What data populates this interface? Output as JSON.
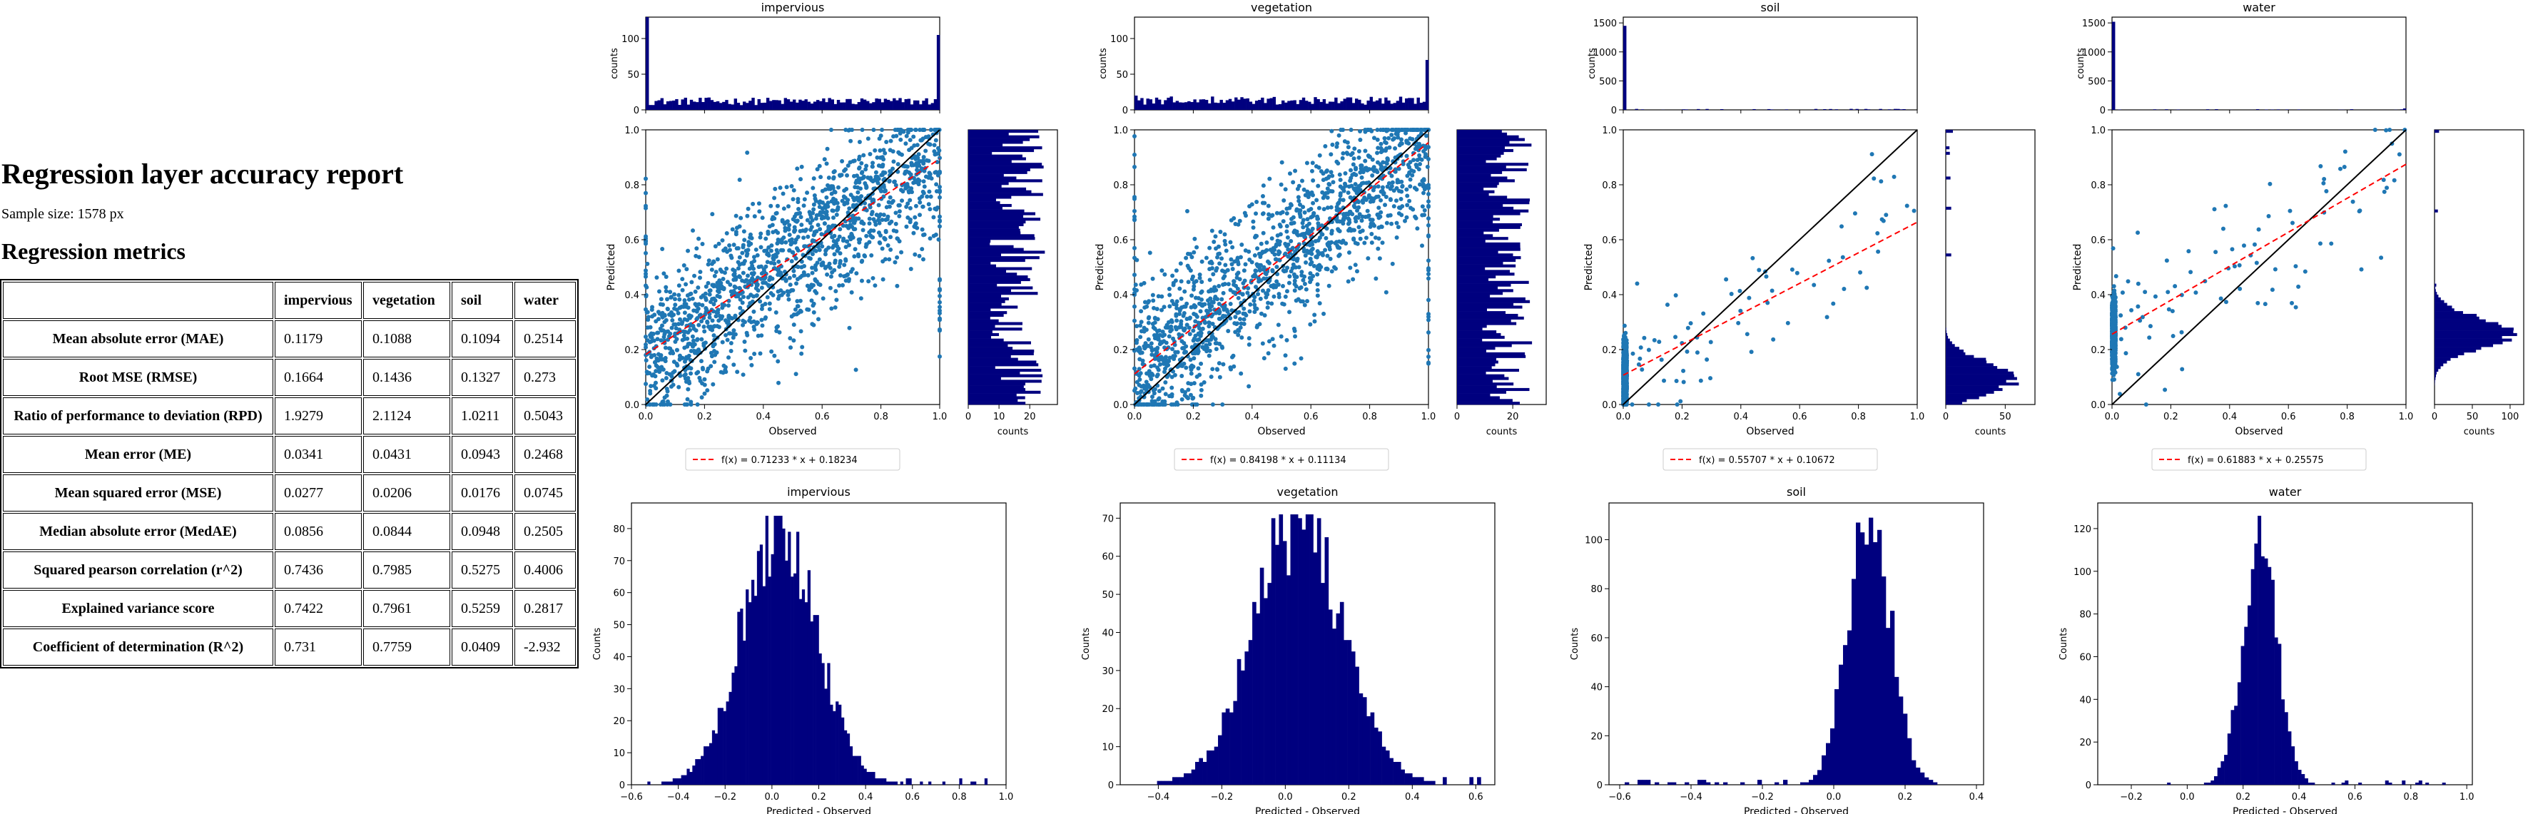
{
  "report": {
    "title": "Regression layer accuracy report",
    "sample_size": "Sample size: 1578 px",
    "metrics_heading": "Regression metrics",
    "columns": [
      "impervious",
      "vegetation",
      "soil",
      "water"
    ],
    "rows": [
      {
        "name": "Mean absolute error (MAE)",
        "values": [
          "0.1179",
          "0.1088",
          "0.1094",
          "0.2514"
        ]
      },
      {
        "name": "Root MSE (RMSE)",
        "values": [
          "0.1664",
          "0.1436",
          "0.1327",
          "0.273"
        ]
      },
      {
        "name": "Ratio of performance to deviation (RPD)",
        "values": [
          "1.9279",
          "2.1124",
          "1.0211",
          "0.5043"
        ]
      },
      {
        "name": "Mean error (ME)",
        "values": [
          "0.0341",
          "0.0431",
          "0.0943",
          "0.2468"
        ]
      },
      {
        "name": "Mean squared error (MSE)",
        "values": [
          "0.0277",
          "0.0206",
          "0.0176",
          "0.0745"
        ]
      },
      {
        "name": "Median absolute error (MedAE)",
        "values": [
          "0.0856",
          "0.0844",
          "0.0948",
          "0.2505"
        ]
      },
      {
        "name": "Squared pearson correlation (r^2)",
        "values": [
          "0.7436",
          "0.7985",
          "0.5275",
          "0.4006"
        ]
      },
      {
        "name": "Explained variance score",
        "values": [
          "0.7422",
          "0.7961",
          "0.5259",
          "0.2817"
        ]
      },
      {
        "name": "Coefficient of determination (R^2)",
        "values": [
          "0.731",
          "0.7759",
          "0.0409",
          "-2.932"
        ]
      }
    ]
  },
  "colors": {
    "hist": "#00007f",
    "points": "#1f77b4",
    "fit": "#ff0000",
    "identity": "#000000"
  },
  "chart_data": [
    {
      "type": "scatter",
      "panel": "impervious",
      "title": "impervious",
      "xlabel": "Observed",
      "ylabel": "Predicted",
      "xlim": [
        0,
        1
      ],
      "ylim": [
        0,
        1
      ],
      "xticks": [
        "0.0",
        "0.2",
        "0.4",
        "0.6",
        "0.8",
        "1.0"
      ],
      "yticks": [
        "0.0",
        "0.2",
        "0.4",
        "0.6",
        "0.8",
        "1.0"
      ],
      "fit": {
        "slope": 0.71233,
        "intercept": 0.18234,
        "label": "f(x) = 0.71233 * x + 0.18234"
      },
      "identity_line": true,
      "pattern": "spread",
      "sample_size": 1578,
      "top_hist": {
        "ylabel": "counts",
        "ylim": [
          0,
          130
        ],
        "yticks": [
          "0",
          "50",
          "100"
        ],
        "edge_left": 130,
        "edge_right": 105,
        "bulk": 12
      },
      "right_hist": {
        "xlabel": "counts",
        "xlim": [
          0,
          29
        ],
        "xticks": [
          "0",
          "10",
          "20"
        ],
        "bulk": 16,
        "spread": 12
      },
      "residuals": {
        "type": "histogram",
        "xlabel": "Predicted - Observed",
        "ylabel": "Counts",
        "xlim": [
          -0.6,
          1.0
        ],
        "xticks": [
          "−0.6",
          "−0.4",
          "−0.2",
          "0.0",
          "0.2",
          "0.4",
          "0.6",
          "0.8",
          "1.0"
        ],
        "xtick_values": [
          -0.6,
          -0.4,
          -0.2,
          0,
          0.2,
          0.4,
          0.6,
          0.8,
          1.0
        ],
        "ylim": [
          0,
          88
        ],
        "yticks": [
          "0",
          "10",
          "20",
          "30",
          "40",
          "50",
          "60",
          "70",
          "80"
        ],
        "ytick_values": [
          0,
          10,
          20,
          30,
          40,
          50,
          60,
          70,
          80
        ],
        "center": 0.03,
        "sd": 0.16,
        "peak": 84,
        "tail": [
          0.45,
          0.93
        ]
      }
    },
    {
      "type": "scatter",
      "panel": "vegetation",
      "title": "vegetation",
      "xlabel": "Observed",
      "ylabel": "Predicted",
      "xlim": [
        0,
        1
      ],
      "ylim": [
        0,
        1
      ],
      "xticks": [
        "0.0",
        "0.2",
        "0.4",
        "0.6",
        "0.8",
        "1.0"
      ],
      "yticks": [
        "0.0",
        "0.2",
        "0.4",
        "0.6",
        "0.8",
        "1.0"
      ],
      "fit": {
        "slope": 0.84198,
        "intercept": 0.11134,
        "label": "f(x) = 0.84198 * x + 0.11134"
      },
      "identity_line": true,
      "pattern": "spread",
      "sample_size": 1578,
      "top_hist": {
        "ylabel": "counts",
        "ylim": [
          0,
          130
        ],
        "yticks": [
          "0",
          "50",
          "100"
        ],
        "edge_left": 20,
        "edge_right": 70,
        "bulk": 13
      },
      "right_hist": {
        "xlabel": "counts",
        "xlim": [
          0,
          32
        ],
        "xticks": [
          "0",
          "20"
        ],
        "bulk": 18,
        "spread": 12
      },
      "residuals": {
        "type": "histogram",
        "xlabel": "Predicted - Observed",
        "ylabel": "Counts",
        "xlim": [
          -0.52,
          0.66
        ],
        "xticks": [
          "−0.4",
          "−0.2",
          "0.0",
          "0.2",
          "0.4",
          "0.6"
        ],
        "xtick_values": [
          -0.4,
          -0.2,
          0,
          0.2,
          0.4,
          0.6
        ],
        "ylim": [
          0,
          74
        ],
        "yticks": [
          "0",
          "10",
          "20",
          "30",
          "40",
          "50",
          "60",
          "70"
        ],
        "ytick_values": [
          0,
          10,
          20,
          30,
          40,
          50,
          60,
          70
        ],
        "center": 0.04,
        "sd": 0.14,
        "peak": 71,
        "tail": [
          0.5,
          0.64
        ]
      }
    },
    {
      "type": "scatter",
      "panel": "soil",
      "title": "soil",
      "xlabel": "Observed",
      "ylabel": "Predicted",
      "xlim": [
        0,
        1
      ],
      "ylim": [
        0,
        1
      ],
      "xticks": [
        "0.0",
        "0.2",
        "0.4",
        "0.6",
        "0.8",
        "1.0"
      ],
      "yticks": [
        "0.0",
        "0.2",
        "0.4",
        "0.6",
        "0.8",
        "1.0"
      ],
      "fit": {
        "slope": 0.55707,
        "intercept": 0.10672,
        "label": "f(x) = 0.55707 * x + 0.10672"
      },
      "identity_line": true,
      "pattern": "zero-cluster",
      "sample_size": 1578,
      "top_hist": {
        "ylabel": "counts",
        "ylim": [
          0,
          1600
        ],
        "yticks": [
          "0",
          "500",
          "1000",
          "1500"
        ],
        "edge_left": 1450,
        "edge_right": 0,
        "bulk": 3
      },
      "right_hist": {
        "xlabel": "counts",
        "xlim": [
          0,
          75
        ],
        "xticks": [
          "0",
          "50"
        ],
        "center": 0.1,
        "sd": 0.055,
        "peak": 62
      },
      "residuals": {
        "type": "histogram",
        "xlabel": "Predicted - Observed",
        "ylabel": "Counts",
        "xlim": [
          -0.63,
          0.42
        ],
        "xticks": [
          "−0.6",
          "−0.4",
          "−0.2",
          "0.0",
          "0.2",
          "0.4"
        ],
        "xtick_values": [
          -0.6,
          -0.4,
          -0.2,
          0,
          0.2,
          0.4
        ],
        "ylim": [
          0,
          115
        ],
        "yticks": [
          "0",
          "20",
          "40",
          "60",
          "80",
          "100"
        ],
        "ytick_values": [
          0,
          20,
          40,
          60,
          80,
          100
        ],
        "center": 0.1,
        "sd": 0.06,
        "peak": 110,
        "tail": [
          -0.55,
          -0.05
        ]
      }
    },
    {
      "type": "scatter",
      "panel": "water",
      "title": "water",
      "xlabel": "Observed",
      "ylabel": "Predicted",
      "xlim": [
        0,
        1
      ],
      "ylim": [
        0,
        1
      ],
      "xticks": [
        "0.0",
        "0.2",
        "0.4",
        "0.6",
        "0.8",
        "1.0"
      ],
      "yticks": [
        "0.0",
        "0.2",
        "0.4",
        "0.6",
        "0.8",
        "1.0"
      ],
      "fit": {
        "slope": 0.61883,
        "intercept": 0.25575,
        "label": "f(x) = 0.61883 * x + 0.25575"
      },
      "identity_line": true,
      "pattern": "zero-cluster",
      "sample_size": 1578,
      "top_hist": {
        "ylabel": "counts",
        "ylim": [
          0,
          1600
        ],
        "yticks": [
          "0",
          "500",
          "1000",
          "1500"
        ],
        "edge_left": 1520,
        "edge_right": 25,
        "bulk": 2
      },
      "right_hist": {
        "xlabel": "counts",
        "xlim": [
          0,
          118
        ],
        "xticks": [
          "0",
          "50",
          "100"
        ],
        "center": 0.26,
        "sd": 0.055,
        "peak": 100
      },
      "residuals": {
        "type": "histogram",
        "xlabel": "Predicted - Observed",
        "ylabel": "Counts",
        "xlim": [
          -0.32,
          1.02
        ],
        "xticks": [
          "−0.2",
          "0.0",
          "0.2",
          "0.4",
          "0.6",
          "0.8",
          "1.0"
        ],
        "xtick_values": [
          -0.2,
          0,
          0.2,
          0.4,
          0.6,
          0.8,
          1.0
        ],
        "ylim": [
          0,
          132
        ],
        "yticks": [
          "0",
          "20",
          "40",
          "60",
          "80",
          "100",
          "120"
        ],
        "ytick_values": [
          0,
          20,
          40,
          60,
          80,
          100,
          120
        ],
        "center": 0.26,
        "sd": 0.06,
        "peak": 126,
        "tail": [
          0.55,
          0.95
        ]
      }
    }
  ]
}
